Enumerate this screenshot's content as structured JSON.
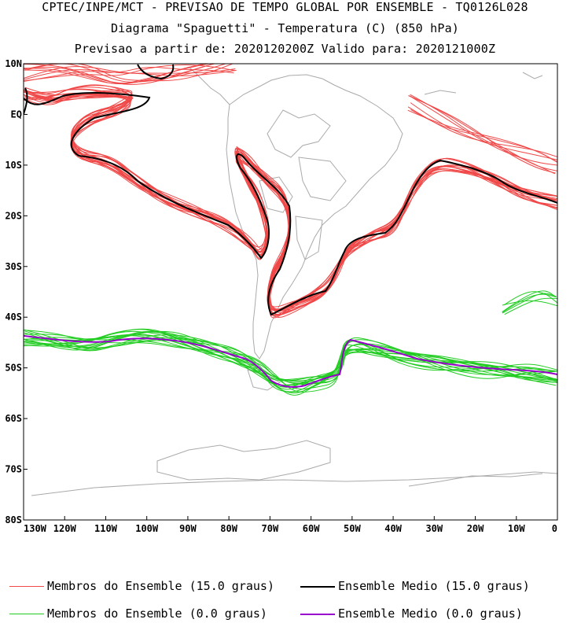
{
  "titles": {
    "line1": "CPTEC/INPE/MCT - PREVISAO DE TEMPO GLOBAL POR ENSEMBLE - TQ0126L028",
    "line2": "Diagrama \"Spaguetti\" - Temperatura (C) (850 hPa)",
    "line3": "Previsao a partir de: 2020120200Z  Valido para: 2020121000Z"
  },
  "axes": {
    "lat_labels": [
      "10N",
      "EQ",
      "10S",
      "20S",
      "30S",
      "40S",
      "50S",
      "60S",
      "70S",
      "80S"
    ],
    "lon_labels": [
      "130W",
      "120W",
      "110W",
      "100W",
      "90W",
      "80W",
      "70W",
      "60W",
      "50W",
      "40W",
      "30W",
      "20W",
      "10W",
      "0"
    ]
  },
  "legend": [
    {
      "label": "Membros do Ensemble (15.0 graus)",
      "color": "#f04848",
      "weight": "thin"
    },
    {
      "label": "Ensemble Medio (15.0 graus)",
      "color": "#000000",
      "weight": "thick"
    },
    {
      "label": "Membros do Ensemble (0.0 graus)",
      "color": "#22cc22",
      "weight": "thin"
    },
    {
      "label": "Ensemble Medio (0.0 graus)",
      "color": "#9900cc",
      "weight": "thick"
    }
  ],
  "colors": {
    "coast": "#aaaaaa",
    "red_members": "#f04848",
    "black_mean": "#000000",
    "green_members": "#22cc22",
    "purple_mean": "#9900cc"
  }
}
